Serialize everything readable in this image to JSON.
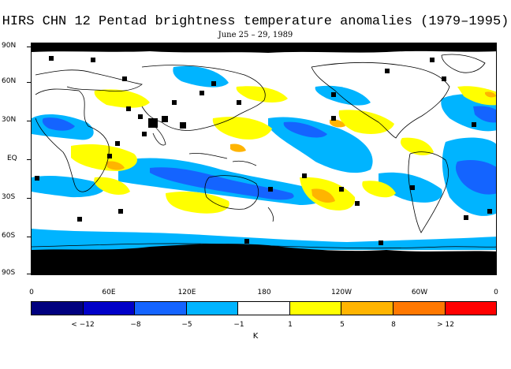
{
  "title": "HIRS CHN 12 Pentad brightness temperature anomalies (1979–1995)",
  "subtitle": "June 25 – 29, 1989",
  "lat_labels": [
    "90N",
    "60N",
    "30N",
    "EQ",
    "30S",
    "60S",
    "90S"
  ],
  "lon_labels": [
    "0",
    "60E",
    "120E",
    "180",
    "120W",
    "60W",
    "0"
  ],
  "colorbar": {
    "colors": [
      "#00007f",
      "#0000c8",
      "#1464ff",
      "#00b4ff",
      "#ffffff",
      "#ffff00",
      "#ffb400",
      "#ff7800",
      "#ff0000"
    ],
    "labels": [
      "< −12",
      "−8",
      "−5",
      "−1",
      "1",
      "5",
      "8",
      "> 12"
    ],
    "unit": "K"
  },
  "map_colors": {
    "missing": "#000000",
    "cold_light": "#00b4ff",
    "cold_mid": "#1464ff",
    "warm_light": "#ffff00",
    "warm_mid": "#ffb400",
    "coast": "#000000"
  }
}
